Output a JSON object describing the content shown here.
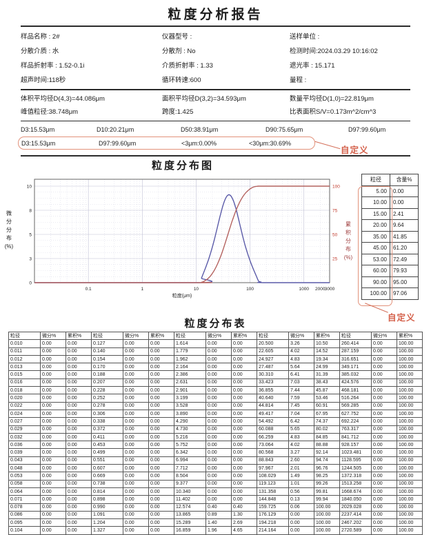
{
  "title": "粒度分析报告",
  "info": [
    [
      "样品名称 : 2#",
      "仪器型号 :",
      "送样单位 :"
    ],
    [
      "分散介质 : 水",
      "分散剂 : No",
      "检测时间:2024.03.29 10:16:02"
    ],
    [
      "样品折射率 : 1.52-0.1i",
      "介质折射率 : 1.33",
      "遮光率 : 15.171"
    ],
    [
      "超声时间:118秒",
      "循环转速:600",
      "量程 :"
    ]
  ],
  "stats": [
    [
      "体积平均径D(4,3)=44.086μm",
      "面积平均径D(3,2)=34.593μm",
      "数量平均径D(1,0)=22.819μm"
    ],
    [
      "峰值粒径:38.748μm",
      "跨度:1.425",
      "比表面积S/V=0.173m^2/cm^3"
    ]
  ],
  "d_values": [
    "D3:15.53μm",
    "D10:20.21μm",
    "D50:38.91μm",
    "D90:75.65μm",
    "D97:99.60μm"
  ],
  "custom_row": {
    "values": [
      "D3:15.53μm",
      "D97:99.60μm",
      "<3μm:0.00%",
      "<30μm:30.69%"
    ],
    "label": "自定义"
  },
  "chart": {
    "title": "粒度分布图",
    "ylabel_left_chars": [
      "微",
      "分",
      "分",
      "布",
      "(%)"
    ],
    "ylabel_right_chars": [
      "累",
      "积",
      "分",
      "布",
      "(%)"
    ]
  },
  "chart_data": {
    "type": "line",
    "x_scale": "log",
    "x_range": [
      0.01,
      3000
    ],
    "x_ticks": [
      "0.1",
      "1",
      "10",
      "100",
      "1000",
      "2000",
      "3000"
    ],
    "xlabel": "粒度(μm)",
    "y_left": {
      "label": "微分分布(%)",
      "ticks": [
        "0",
        "3",
        "5",
        "8",
        "10"
      ],
      "tick_values": [
        0,
        2.5,
        5,
        7.5,
        10
      ],
      "range": [
        0,
        10
      ]
    },
    "y_right": {
      "label": "累积分布(%)",
      "ticks": [
        "25",
        "50",
        "75",
        "100"
      ],
      "tick_values": [
        25,
        50,
        75,
        100
      ],
      "range": [
        0,
        100
      ],
      "color": "#c0392b"
    },
    "grid": true,
    "legend": false,
    "diff_display_scale": 1.2,
    "series": [
      {
        "name": "微分分布",
        "axis": "left",
        "color": "#5a5aa8",
        "x": [
          0.01,
          11.402,
          12.574,
          13.865,
          15.289,
          16.859,
          18.59,
          20.5,
          22.605,
          24.927,
          27.487,
          30.31,
          33.423,
          36.855,
          40.64,
          44.814,
          49.417,
          54.492,
          60.088,
          66.259,
          73.064,
          80.568,
          88.843,
          97.967,
          108.029,
          119.123,
          131.358,
          144.848,
          159.725,
          176.129,
          3000
        ],
        "y": [
          0,
          0,
          0.4,
          0.89,
          1.4,
          1.96,
          2.58,
          3.26,
          4.02,
          4.83,
          5.64,
          6.41,
          7.03,
          7.44,
          7.59,
          7.45,
          7.04,
          6.42,
          5.65,
          4.83,
          4.02,
          3.27,
          2.6,
          2.01,
          1.49,
          1.01,
          0.56,
          0.13,
          0.06,
          0,
          0
        ]
      },
      {
        "name": "累积分布",
        "axis": "right",
        "color": "#b4625f",
        "x": [
          0.01,
          11.402,
          12.574,
          13.865,
          15.289,
          16.859,
          18.59,
          20.5,
          22.605,
          24.927,
          27.487,
          30.31,
          33.423,
          36.855,
          40.64,
          44.814,
          49.417,
          54.492,
          60.088,
          66.259,
          73.064,
          80.568,
          88.843,
          97.967,
          108.029,
          119.123,
          131.358,
          144.848,
          159.725,
          176.129,
          3000
        ],
        "y": [
          0,
          0,
          0.4,
          1.3,
          2.69,
          4.65,
          7.23,
          10.5,
          14.52,
          19.34,
          24.99,
          31.39,
          38.43,
          45.87,
          53.46,
          60.91,
          67.95,
          74.37,
          80.02,
          84.85,
          88.88,
          92.14,
          94.74,
          96.76,
          98.25,
          99.26,
          99.81,
          99.94,
          100,
          100,
          100
        ]
      }
    ]
  },
  "side_table": {
    "headers": [
      "粒径",
      "含量%"
    ],
    "rows": [
      [
        "5.00",
        "0.00"
      ],
      [
        "10.00",
        "0.00"
      ],
      [
        "15.00",
        "2.41"
      ],
      [
        "20.00",
        "9.64"
      ],
      [
        "35.00",
        "41.85"
      ],
      [
        "45.00",
        "61.20"
      ],
      [
        "53.00",
        "72.49"
      ],
      [
        "60.00",
        "79.93"
      ],
      [
        "90.00",
        "95.00"
      ],
      [
        "100.00",
        "97.06"
      ]
    ],
    "custom_label": "自定义"
  },
  "dist_table": {
    "title": "粒度分布表",
    "headers": [
      "粒径",
      "微分%",
      "累积%",
      "粒径",
      "微分%",
      "累积%",
      "粒径",
      "微分%",
      "累积%",
      "粒径",
      "微分%",
      "累积%",
      "粒径",
      "微分%",
      "累积%"
    ],
    "groups": [
      {
        "size": [
          "0.010",
          "0.011",
          "0.012",
          "0.013",
          "0.015",
          "0.016",
          "0.018",
          "0.020",
          "0.022",
          "0.024",
          "0.027",
          "0.029",
          "0.032",
          "0.036",
          "0.039",
          "0.043",
          "0.048",
          "0.053",
          "0.058",
          "0.064",
          "0.071",
          "0.078",
          "0.086",
          "0.095",
          "0.104",
          "0.115"
        ],
        "diff": [
          "0.00",
          "0.00",
          "0.00",
          "0.00",
          "0.00",
          "0.00",
          "0.00",
          "0.00",
          "0.00",
          "0.00",
          "0.00",
          "0.00",
          "0.00",
          "0.00",
          "0.00",
          "0.00",
          "0.00",
          "0.00",
          "0.00",
          "0.00",
          "0.00",
          "0.00",
          "0.00",
          "0.00",
          "0.00",
          "0.00"
        ],
        "cum": [
          "0.00",
          "0.00",
          "0.00",
          "0.00",
          "0.00",
          "0.00",
          "0.00",
          "0.00",
          "0.00",
          "0.00",
          "0.00",
          "0.00",
          "0.00",
          "0.00",
          "0.00",
          "0.00",
          "0.00",
          "0.00",
          "0.00",
          "0.00",
          "0.00",
          "0.00",
          "0.00",
          "0.00",
          "0.00",
          "0.00"
        ]
      },
      {
        "size": [
          "0.127",
          "0.140",
          "0.154",
          "0.170",
          "0.188",
          "0.207",
          "0.228",
          "0.252",
          "0.278",
          "0.306",
          "0.338",
          "0.372",
          "0.411",
          "0.453",
          "0.499",
          "0.551",
          "0.607",
          "0.669",
          "0.738",
          "0.814",
          "0.898",
          "0.990",
          "1.091",
          "1.204",
          "1.327",
          "1.463"
        ],
        "diff": [
          "0.00",
          "0.00",
          "0.00",
          "0.00",
          "0.00",
          "0.00",
          "0.00",
          "0.00",
          "0.00",
          "0.00",
          "0.00",
          "0.00",
          "0.00",
          "0.00",
          "0.00",
          "0.00",
          "0.00",
          "0.00",
          "0.00",
          "0.00",
          "0.00",
          "0.00",
          "0.00",
          "0.00",
          "0.00",
          "0.00"
        ],
        "cum": [
          "0.00",
          "0.00",
          "0.00",
          "0.00",
          "0.00",
          "0.00",
          "0.00",
          "0.00",
          "0.00",
          "0.00",
          "0.00",
          "0.00",
          "0.00",
          "0.00",
          "0.00",
          "0.00",
          "0.00",
          "0.00",
          "0.00",
          "0.00",
          "0.00",
          "0.00",
          "0.00",
          "0.00",
          "0.00",
          "0.00"
        ]
      },
      {
        "size": [
          "1.614",
          "1.779",
          "1.962",
          "2.164",
          "2.386",
          "2.631",
          "2.901",
          "3.199",
          "3.528",
          "3.890",
          "4.290",
          "4.730",
          "5.216",
          "5.752",
          "6.342",
          "6.994",
          "7.712",
          "8.504",
          "9.377",
          "10.340",
          "11.402",
          "12.574",
          "13.865",
          "15.289",
          "16.859",
          "18.590"
        ],
        "diff": [
          "0.00",
          "0.00",
          "0.00",
          "0.00",
          "0.00",
          "0.00",
          "0.00",
          "0.00",
          "0.00",
          "0.00",
          "0.00",
          "0.00",
          "0.00",
          "0.00",
          "0.00",
          "0.00",
          "0.00",
          "0.00",
          "0.00",
          "0.00",
          "0.00",
          "0.40",
          "0.89",
          "1.40",
          "1.96",
          "2.58"
        ],
        "cum": [
          "0.00",
          "0.00",
          "0.00",
          "0.00",
          "0.00",
          "0.00",
          "0.00",
          "0.00",
          "0.00",
          "0.00",
          "0.00",
          "0.00",
          "0.00",
          "0.00",
          "0.00",
          "0.00",
          "0.00",
          "0.00",
          "0.00",
          "0.00",
          "0.00",
          "0.40",
          "1.30",
          "2.69",
          "4.65",
          "7.23"
        ]
      },
      {
        "size": [
          "20.500",
          "22.605",
          "24.927",
          "27.487",
          "30.310",
          "33.423",
          "36.855",
          "40.640",
          "44.814",
          "49.417",
          "54.492",
          "60.088",
          "66.259",
          "73.064",
          "80.568",
          "88.843",
          "97.967",
          "108.029",
          "119.123",
          "131.358",
          "144.848",
          "159.725",
          "176.129",
          "194.218",
          "214.164",
          "236.159"
        ],
        "diff": [
          "3.26",
          "4.02",
          "4.83",
          "5.64",
          "6.41",
          "7.03",
          "7.44",
          "7.59",
          "7.45",
          "7.04",
          "6.42",
          "5.65",
          "4.83",
          "4.02",
          "3.27",
          "2.60",
          "2.01",
          "1.49",
          "1.01",
          "0.56",
          "0.13",
          "0.06",
          "0.00",
          "0.00",
          "0.00",
          "0.00"
        ],
        "cum": [
          "10.50",
          "14.52",
          "19.34",
          "24.99",
          "31.39",
          "38.43",
          "45.87",
          "53.46",
          "60.91",
          "67.95",
          "74.37",
          "80.02",
          "84.85",
          "88.88",
          "92.14",
          "94.74",
          "96.76",
          "98.25",
          "99.26",
          "99.81",
          "99.94",
          "100.00",
          "100.00",
          "100.00",
          "100.00",
          "100.00"
        ]
      },
      {
        "size": [
          "260.414",
          "287.159",
          "316.651",
          "349.171",
          "385.032",
          "424.576",
          "468.181",
          "516.264",
          "569.285",
          "627.752",
          "692.224",
          "763.317",
          "841.712",
          "928.157",
          "1023.481",
          "1128.595",
          "1244.505",
          "1372.318",
          "1513.258",
          "1668.674",
          "1840.050",
          "2029.028",
          "2237.414",
          "2467.202",
          "2720.589",
          "3000.000"
        ],
        "diff": [
          "0.00",
          "0.00",
          "0.00",
          "0.00",
          "0.00",
          "0.00",
          "0.00",
          "0.00",
          "0.00",
          "0.00",
          "0.00",
          "0.00",
          "0.00",
          "0.00",
          "0.00",
          "0.00",
          "0.00",
          "0.00",
          "0.00",
          "0.00",
          "0.00",
          "0.00",
          "0.00",
          "0.00",
          "0.00",
          "0.00"
        ],
        "cum": [
          "100.00",
          "100.00",
          "100.00",
          "100.00",
          "100.00",
          "100.00",
          "100.00",
          "100.00",
          "100.00",
          "100.00",
          "100.00",
          "100.00",
          "100.00",
          "100.00",
          "100.00",
          "100.00",
          "100.00",
          "100.00",
          "100.00",
          "100.00",
          "100.00",
          "100.00",
          "100.00",
          "100.00",
          "100.00",
          "100.00"
        ]
      }
    ]
  }
}
